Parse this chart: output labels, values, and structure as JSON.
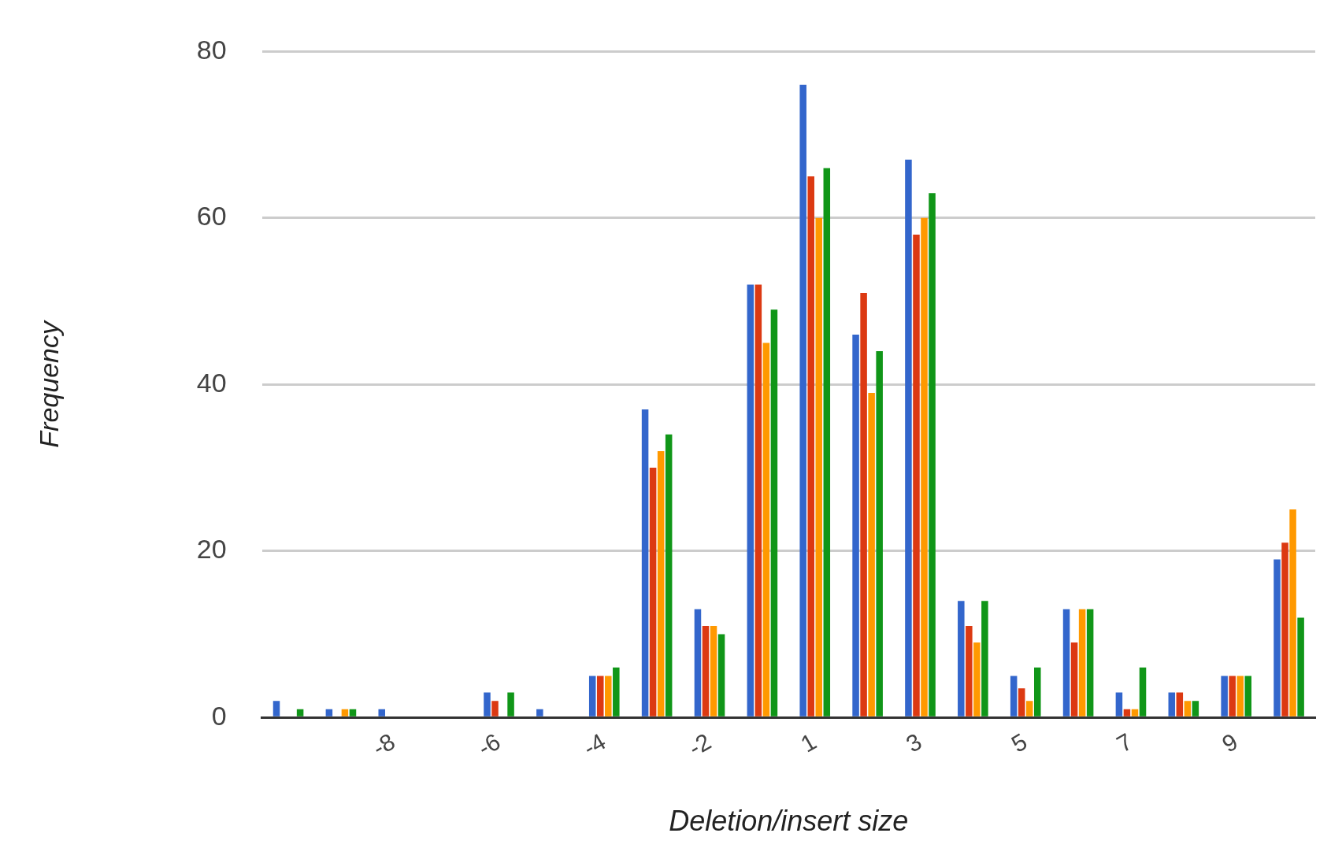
{
  "chart_data": {
    "type": "bar",
    "xlabel": "Deletion/insert size",
    "ylabel": "Frequency",
    "categories": [
      null,
      null,
      "-8",
      null,
      "-6",
      null,
      "-4",
      null,
      "-2",
      null,
      "1",
      null,
      "3",
      null,
      "5",
      null,
      "7",
      null,
      "9",
      null
    ],
    "series": [
      {
        "color": "#3366cc",
        "values": [
          2,
          1,
          1,
          0,
          3,
          1,
          5,
          37,
          13,
          52,
          76,
          46,
          67,
          14,
          5,
          13,
          3,
          3,
          5,
          19
        ]
      },
      {
        "color": "#dc3912",
        "values": [
          0,
          0,
          0,
          0,
          2,
          0,
          5,
          30,
          11,
          52,
          65,
          51,
          58,
          11,
          3.5,
          9,
          1,
          3,
          5,
          21
        ]
      },
      {
        "color": "#ff9900",
        "values": [
          0,
          1,
          0,
          0,
          0,
          0,
          5,
          32,
          11,
          45,
          60,
          39,
          60,
          9,
          2,
          13,
          1,
          2,
          5,
          25
        ]
      },
      {
        "color": "#109618",
        "values": [
          1,
          1,
          0,
          0,
          3,
          0,
          6,
          34,
          10,
          49,
          66,
          44,
          63,
          14,
          6,
          13,
          6,
          2,
          5,
          12
        ]
      }
    ],
    "ylim": [
      0,
      80
    ],
    "yticks": [
      0,
      20,
      40,
      60,
      80
    ],
    "grid": "y",
    "legend": false
  }
}
